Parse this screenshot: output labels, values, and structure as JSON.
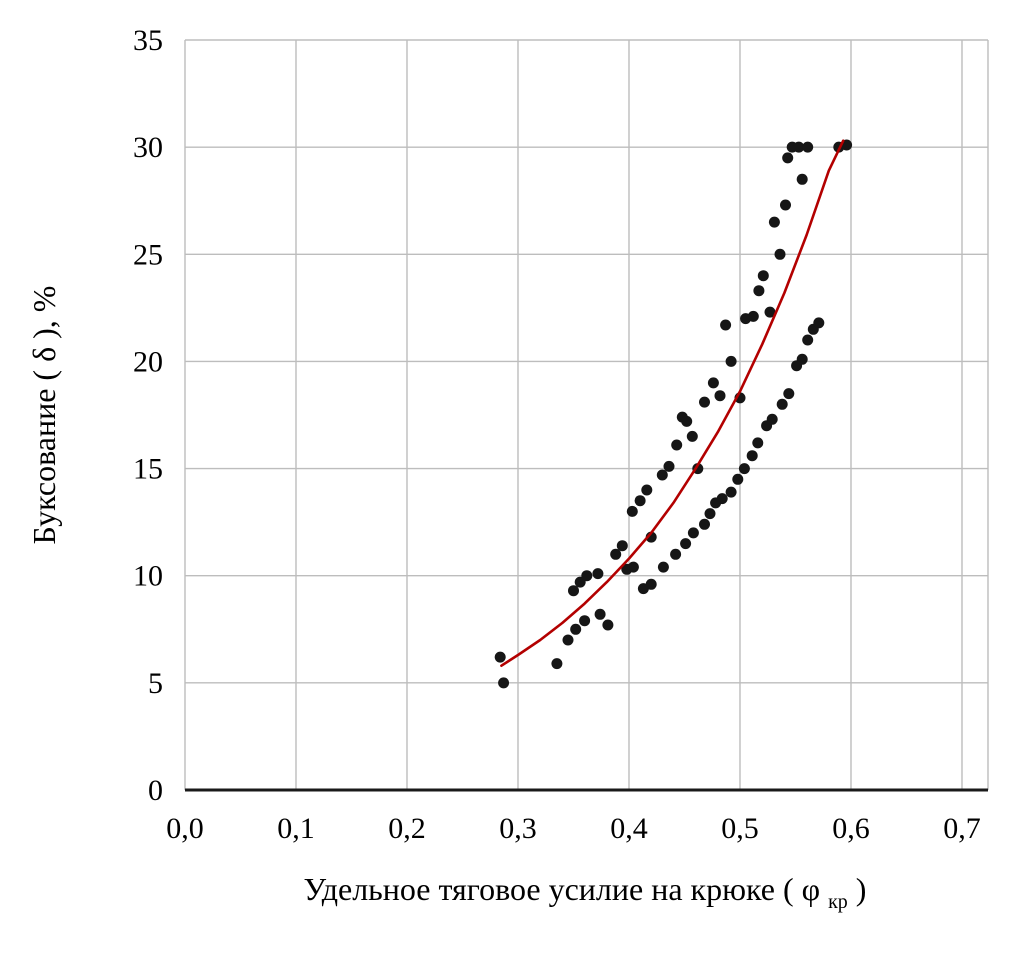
{
  "chart_data": {
    "type": "scatter",
    "title": "",
    "xlabel": {
      "prefix": "Удельное тяговое усилие на крюке ( φ",
      "subscript": "кр",
      "suffix": " )"
    },
    "ylabel": "Буксование ( δ ), %",
    "xlim": [
      0,
      0.7
    ],
    "ylim": [
      0,
      35
    ],
    "grid": true,
    "legend": "none",
    "x_ticks": {
      "labels": [
        "0,0",
        "0,1",
        "0,2",
        "0,3",
        "0,4",
        "0,5",
        "0,6",
        "0,7"
      ],
      "values": [
        0.0,
        0.1,
        0.2,
        0.3,
        0.4,
        0.5,
        0.6,
        0.7
      ]
    },
    "y_ticks": {
      "labels": [
        "0",
        "5",
        "10",
        "15",
        "20",
        "25",
        "30",
        "35"
      ],
      "values": [
        0,
        5,
        10,
        15,
        20,
        25,
        30,
        35
      ]
    },
    "colors": {
      "points": "#161616",
      "curve": "#b30000",
      "grid": "#bdbdbd",
      "axis": "#1a1a1a"
    },
    "series": [
      {
        "name": "experimental-points",
        "type": "scatter",
        "points": [
          [
            0.284,
            6.2
          ],
          [
            0.287,
            5.0
          ],
          [
            0.335,
            5.9
          ],
          [
            0.345,
            7.0
          ],
          [
            0.352,
            7.5
          ],
          [
            0.36,
            7.9
          ],
          [
            0.374,
            8.2
          ],
          [
            0.381,
            7.7
          ],
          [
            0.35,
            9.3
          ],
          [
            0.356,
            9.7
          ],
          [
            0.362,
            10.0
          ],
          [
            0.372,
            10.1
          ],
          [
            0.388,
            11.0
          ],
          [
            0.394,
            11.4
          ],
          [
            0.398,
            10.3
          ],
          [
            0.404,
            10.4
          ],
          [
            0.403,
            13.0
          ],
          [
            0.41,
            13.5
          ],
          [
            0.416,
            14.0
          ],
          [
            0.42,
            11.8
          ],
          [
            0.413,
            9.4
          ],
          [
            0.42,
            9.6
          ],
          [
            0.43,
            14.7
          ],
          [
            0.436,
            15.1
          ],
          [
            0.431,
            10.4
          ],
          [
            0.443,
            16.1
          ],
          [
            0.442,
            11.0
          ],
          [
            0.448,
            17.4
          ],
          [
            0.452,
            17.2
          ],
          [
            0.457,
            16.5
          ],
          [
            0.451,
            11.5
          ],
          [
            0.458,
            12.0
          ],
          [
            0.462,
            15.0
          ],
          [
            0.468,
            18.1
          ],
          [
            0.476,
            19.0
          ],
          [
            0.468,
            12.4
          ],
          [
            0.473,
            12.9
          ],
          [
            0.482,
            18.4
          ],
          [
            0.478,
            13.4
          ],
          [
            0.484,
            13.6
          ],
          [
            0.487,
            21.7
          ],
          [
            0.492,
            20.0
          ],
          [
            0.492,
            13.9
          ],
          [
            0.5,
            18.3
          ],
          [
            0.498,
            14.5
          ],
          [
            0.504,
            15.0
          ],
          [
            0.505,
            22.0
          ],
          [
            0.512,
            22.1
          ],
          [
            0.511,
            15.6
          ],
          [
            0.516,
            16.2
          ],
          [
            0.517,
            23.3
          ],
          [
            0.521,
            24.0
          ],
          [
            0.527,
            22.3
          ],
          [
            0.524,
            17.0
          ],
          [
            0.529,
            17.3
          ],
          [
            0.531,
            26.5
          ],
          [
            0.536,
            25.0
          ],
          [
            0.538,
            18.0
          ],
          [
            0.544,
            18.5
          ],
          [
            0.541,
            27.3
          ],
          [
            0.543,
            29.5
          ],
          [
            0.547,
            30.0
          ],
          [
            0.553,
            30.0
          ],
          [
            0.556,
            28.5
          ],
          [
            0.551,
            19.8
          ],
          [
            0.556,
            20.1
          ],
          [
            0.561,
            30.0
          ],
          [
            0.561,
            21.0
          ],
          [
            0.566,
            21.5
          ],
          [
            0.571,
            21.8
          ],
          [
            0.589,
            30.0
          ],
          [
            0.596,
            30.1
          ]
        ]
      },
      {
        "name": "fitted-curve",
        "type": "line",
        "points": [
          [
            0.285,
            5.8
          ],
          [
            0.3,
            6.3
          ],
          [
            0.32,
            7.0
          ],
          [
            0.34,
            7.8
          ],
          [
            0.36,
            8.7
          ],
          [
            0.38,
            9.7
          ],
          [
            0.4,
            10.8
          ],
          [
            0.42,
            12.0
          ],
          [
            0.44,
            13.4
          ],
          [
            0.46,
            15.0
          ],
          [
            0.48,
            16.7
          ],
          [
            0.5,
            18.6
          ],
          [
            0.52,
            20.8
          ],
          [
            0.54,
            23.2
          ],
          [
            0.56,
            25.9
          ],
          [
            0.58,
            28.9
          ],
          [
            0.593,
            30.3
          ]
        ]
      }
    ]
  }
}
